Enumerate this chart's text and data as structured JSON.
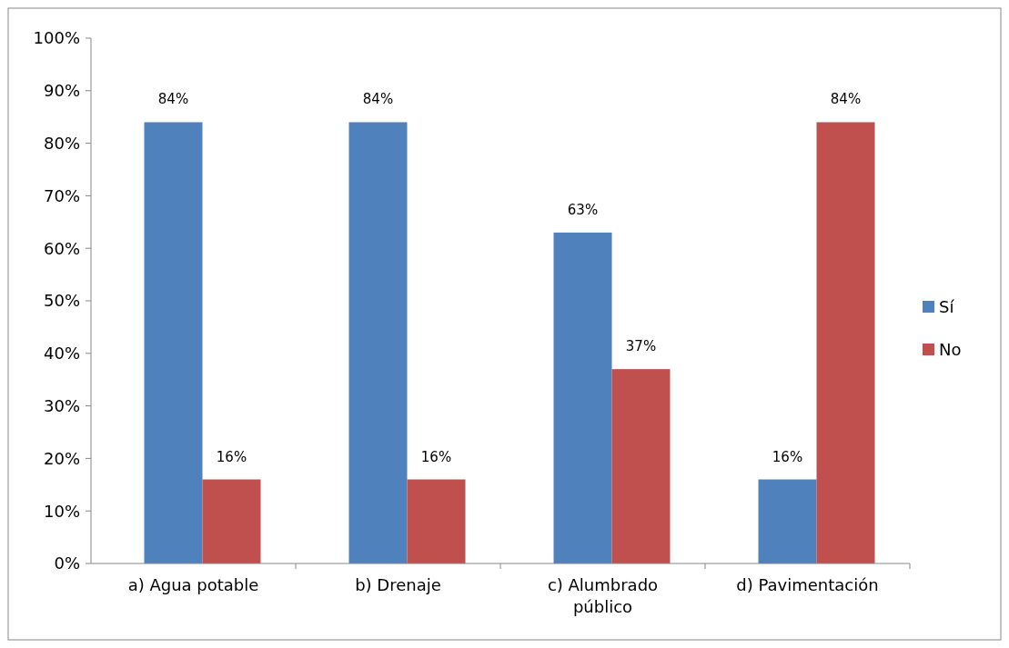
{
  "chart_data": {
    "type": "bar",
    "categories": [
      "a) Agua potable",
      "b) Drenaje",
      "c) Alumbrado público",
      "d) Pavimentación"
    ],
    "series": [
      {
        "name": "Sí",
        "color": "#4f81bd",
        "values": [
          84,
          84,
          63,
          16
        ],
        "value_labels": [
          "84%",
          "84%",
          "63%",
          "16%"
        ]
      },
      {
        "name": "No",
        "color": "#c0504d",
        "values": [
          16,
          16,
          37,
          84
        ],
        "value_labels": [
          "16%",
          "16%",
          "37%",
          "84%"
        ]
      }
    ],
    "ylim": [
      0,
      100
    ],
    "yticks": [
      {
        "value": 0,
        "label": "0%"
      },
      {
        "value": 10,
        "label": "10%"
      },
      {
        "value": 20,
        "label": "20%"
      },
      {
        "value": 30,
        "label": "30%"
      },
      {
        "value": 40,
        "label": "40%"
      },
      {
        "value": 50,
        "label": "50%"
      },
      {
        "value": 60,
        "label": "60%"
      },
      {
        "value": 70,
        "label": "70%"
      },
      {
        "value": 80,
        "label": "80%"
      },
      {
        "value": 90,
        "label": "90%"
      },
      {
        "value": 100,
        "label": "100%"
      }
    ],
    "grid": false,
    "legend": "right"
  }
}
